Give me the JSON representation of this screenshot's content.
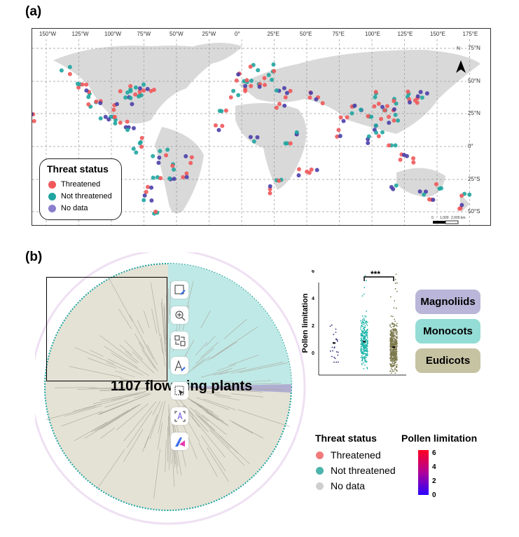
{
  "panel_a": {
    "label": "(a)",
    "lon_ticks": [
      "150°W",
      "125°W",
      "100°W",
      "75°W",
      "50°W",
      "25°W",
      "0°",
      "25°E",
      "50°E",
      "75°E",
      "100°E",
      "125°E",
      "150°E",
      "175°E"
    ],
    "lat_ticks": [
      "75°N",
      "50°N",
      "25°N",
      "0°",
      "25°S",
      "50°S"
    ],
    "scale_bar": [
      "0",
      "1,000",
      "2,000 km"
    ],
    "north_label": "N",
    "legend": {
      "title": "Threat status",
      "items": [
        "Threatened",
        "Not threatened",
        "No data"
      ]
    },
    "colors": {
      "threatened": "#f0585a",
      "not_threatened": "#1fa5a0",
      "no_data": "#4a3fa8"
    },
    "points": [
      [
        -75,
        42,
        0
      ],
      [
        -80,
        38,
        1
      ],
      [
        -85,
        35,
        2
      ],
      [
        -90,
        40,
        1
      ],
      [
        -95,
        30,
        0
      ],
      [
        -100,
        25,
        1
      ],
      [
        -105,
        20,
        2
      ],
      [
        -120,
        40,
        1
      ],
      [
        -122,
        45,
        0
      ],
      [
        -115,
        33,
        1
      ],
      [
        -78,
        45,
        1
      ],
      [
        -70,
        45,
        0
      ],
      [
        -88,
        45,
        1
      ],
      [
        -110,
        32,
        0
      ],
      [
        -125,
        50,
        1
      ],
      [
        -135,
        58,
        1
      ],
      [
        -100,
        20,
        1
      ],
      [
        -90,
        17,
        0
      ],
      [
        -85,
        12,
        2
      ],
      [
        -160,
        22,
        0
      ],
      [
        -75,
        5,
        1
      ],
      [
        -60,
        -5,
        1
      ],
      [
        -50,
        -15,
        1
      ],
      [
        -45,
        -22,
        0
      ],
      [
        -55,
        -25,
        2
      ],
      [
        -65,
        -25,
        1
      ],
      [
        -70,
        -33,
        0
      ],
      [
        -72,
        -40,
        2
      ],
      [
        -68,
        -50,
        1
      ],
      [
        -40,
        -10,
        0
      ],
      [
        -80,
        -2,
        1
      ],
      [
        -65,
        -10,
        2
      ],
      [
        -5,
        40,
        1
      ],
      [
        0,
        45,
        0
      ],
      [
        5,
        50,
        1
      ],
      [
        10,
        48,
        1
      ],
      [
        15,
        45,
        0
      ],
      [
        20,
        52,
        1
      ],
      [
        25,
        60,
        1
      ],
      [
        10,
        60,
        1
      ],
      [
        -3,
        53,
        0
      ],
      [
        30,
        45,
        2
      ],
      [
        35,
        40,
        0
      ],
      [
        30,
        30,
        0
      ],
      [
        -15,
        25,
        1
      ],
      [
        -17,
        15,
        0
      ],
      [
        10,
        5,
        2
      ],
      [
        35,
        0,
        1
      ],
      [
        30,
        -25,
        1
      ],
      [
        25,
        -33,
        0
      ],
      [
        47,
        -20,
        0
      ],
      [
        55,
        -20,
        0
      ],
      [
        78,
        20,
        0
      ],
      [
        85,
        28,
        1
      ],
      [
        90,
        30,
        2
      ],
      [
        100,
        25,
        1
      ],
      [
        105,
        30,
        0
      ],
      [
        110,
        25,
        1
      ],
      [
        115,
        30,
        0
      ],
      [
        120,
        35,
        1
      ],
      [
        100,
        15,
        2
      ],
      [
        105,
        10,
        1
      ],
      [
        110,
        20,
        0
      ],
      [
        125,
        40,
        1
      ],
      [
        130,
        35,
        0
      ],
      [
        140,
        40,
        2
      ],
      [
        138,
        36,
        0
      ],
      [
        120,
        22,
        1
      ],
      [
        100,
        5,
        2
      ],
      [
        115,
        0,
        1
      ],
      [
        125,
        -8,
        0
      ],
      [
        130,
        -10,
        0
      ],
      [
        150,
        -30,
        1
      ],
      [
        145,
        -38,
        0
      ],
      [
        140,
        -35,
        2
      ],
      [
        118,
        -32,
        2
      ],
      [
        172,
        -38,
        1
      ],
      [
        170,
        -45,
        0
      ],
      [
        100,
        40,
        1
      ],
      [
        50,
        40,
        0
      ],
      [
        60,
        35,
        0
      ],
      [
        44,
        12,
        2
      ],
      [
        75,
        10,
        0
      ]
    ]
  },
  "panel_b": {
    "label": "(b)",
    "tree_title": "1107 flowering plants",
    "clades": [
      "Magnoliids",
      "Monocots",
      "Eudicots"
    ],
    "legend": {
      "title": "Threat status",
      "items": [
        "Threatened",
        "Not threatened",
        "No data"
      ]
    },
    "colorbar": {
      "title": "Pollen limitation",
      "ticks": [
        "6",
        "4",
        "2",
        "0"
      ]
    },
    "significance": "***"
  },
  "chart_data": {
    "type": "scatter",
    "ylabel": "Pollen limitation",
    "ylim": [
      -1.5,
      6.5
    ],
    "yticks": [
      "6",
      "4",
      "2",
      "0"
    ],
    "groups": [
      {
        "name": "Magnoliids",
        "color": "#2d2a7a",
        "mean": 0.7,
        "min": -0.7,
        "max": 4.4
      },
      {
        "name": "Monocots",
        "color": "#1fb5ab",
        "mean": 0.8,
        "min": -1.4,
        "max": 6.2
      },
      {
        "name": "Eudicots",
        "color": "#7d7a4e",
        "mean": 0.4,
        "min": -1.5,
        "max": 5.9
      }
    ]
  },
  "toolbar": [
    "image-edit",
    "zoom-in",
    "convert",
    "text-edit",
    "select-object",
    "ocr-text",
    "app-logo"
  ]
}
